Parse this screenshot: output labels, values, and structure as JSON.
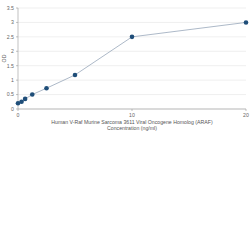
{
  "chart_data": {
    "type": "line",
    "x_label": "Human V-Raf Murine Sarcoma 3611 Viral Oncogene Homolog (ARAF) Concentration (ng/ml)",
    "y_label": "OD",
    "x": [
      0,
      0.3125,
      0.625,
      1.25,
      2.5,
      5,
      10,
      20
    ],
    "values": [
      0.2,
      0.25,
      0.35,
      0.5,
      0.72,
      1.18,
      2.5,
      3.0
    ],
    "color": "#1f4e79",
    "marker": "circle",
    "xlim": [
      0,
      20
    ],
    "xticks": [
      0,
      10,
      20
    ],
    "ylim": [
      0,
      3.5
    ],
    "yticks": [
      0,
      0.5,
      1,
      1.5,
      2,
      2.5,
      3,
      3.5
    ],
    "grid": true
  }
}
